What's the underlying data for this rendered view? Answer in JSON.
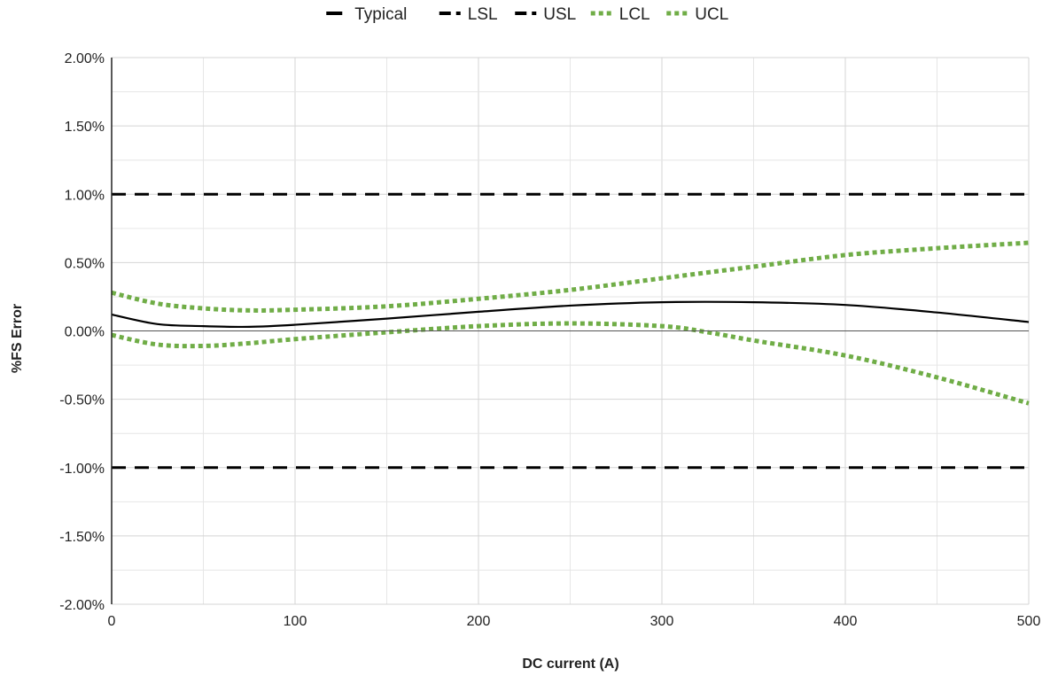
{
  "chart_data": {
    "type": "line",
    "title": "",
    "xlabel": "DC current (A)",
    "ylabel": "%FS Error",
    "xlim": [
      0,
      500
    ],
    "ylim": [
      -2.0,
      2.0
    ],
    "x_ticks": [
      "0",
      "100",
      "200",
      "300",
      "400",
      "500"
    ],
    "y_ticks": [
      "2.00%",
      "1.50%",
      "1.00%",
      "0.50%",
      "0.00%",
      "-0.50%",
      "-1.00%",
      "-1.50%",
      "-2.00%"
    ],
    "grid": true,
    "legend_position": "top",
    "series": [
      {
        "name": "Typical",
        "color": "#000000",
        "style": "solid",
        "x": [
          0,
          25,
          50,
          75,
          100,
          150,
          200,
          250,
          300,
          350,
          400,
          450,
          500
        ],
        "y": [
          0.12,
          0.05,
          0.035,
          0.03,
          0.045,
          0.09,
          0.14,
          0.185,
          0.21,
          0.21,
          0.19,
          0.135,
          0.065
        ]
      },
      {
        "name": "LSL",
        "color": "#000000",
        "style": "dashed",
        "x": [
          0,
          500
        ],
        "y": [
          -1.0,
          -1.0
        ]
      },
      {
        "name": "USL",
        "color": "#000000",
        "style": "dashed",
        "x": [
          0,
          500
        ],
        "y": [
          1.0,
          1.0
        ]
      },
      {
        "name": "LCL",
        "color": "#70ad47",
        "style": "dotted",
        "x": [
          0,
          25,
          50,
          75,
          100,
          150,
          200,
          250,
          300,
          325,
          350,
          400,
          450,
          500
        ],
        "y": [
          -0.03,
          -0.1,
          -0.11,
          -0.09,
          -0.06,
          -0.01,
          0.035,
          0.055,
          0.035,
          -0.01,
          -0.07,
          -0.18,
          -0.34,
          -0.53
        ]
      },
      {
        "name": "UCL",
        "color": "#70ad47",
        "style": "dotted",
        "x": [
          0,
          25,
          50,
          75,
          100,
          150,
          200,
          250,
          300,
          350,
          400,
          450,
          500
        ],
        "y": [
          0.28,
          0.2,
          0.165,
          0.15,
          0.155,
          0.18,
          0.235,
          0.3,
          0.385,
          0.47,
          0.555,
          0.605,
          0.645
        ]
      }
    ]
  }
}
